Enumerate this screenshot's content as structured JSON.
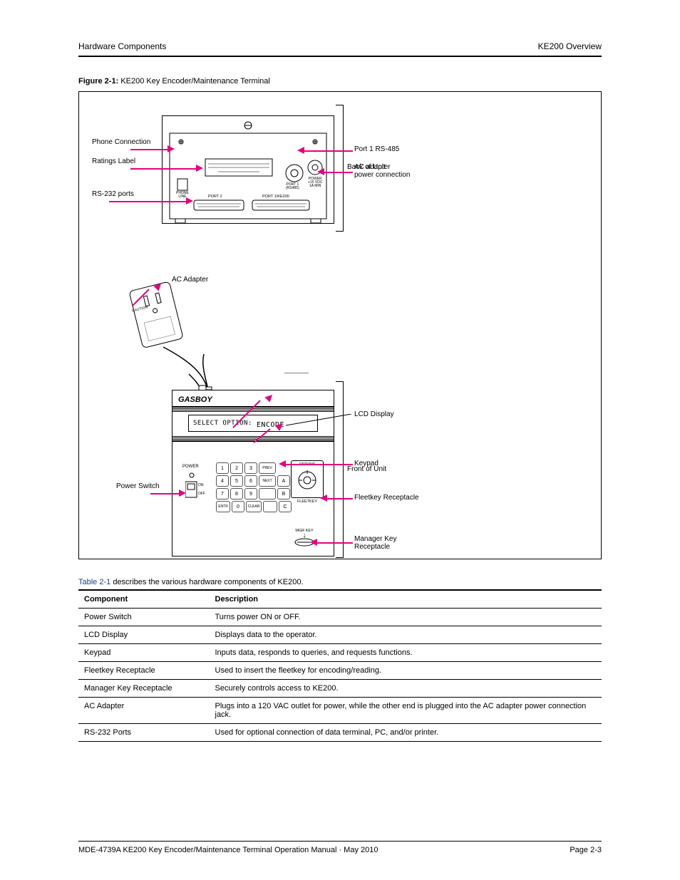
{
  "header": {
    "left": "Hardware Components",
    "right": "KE200 Overview"
  },
  "figure": {
    "caption_prefix": "Figure 2-1:",
    "caption_text": " KE200 Key Encoder/Maintenance Terminal",
    "annotations": {
      "phone_conn": {
        "text": "Phone Connection"
      },
      "ratings": {
        "text": "Ratings Label"
      },
      "port2": {
        "text": "RS-232 ports"
      },
      "ac_adapter": {
        "text": "AC Adapter"
      },
      "back_bracket": {
        "text": "Back of Unit"
      },
      "port1": {
        "text": "Port 1 RS-485"
      },
      "front_bracket": {
        "text": "Front of Unit"
      },
      "power_conn": {
        "text": "AC adapter\npower connection"
      },
      "display": {
        "text": "LCD Display"
      },
      "keypad": {
        "text": "Keypad"
      },
      "fleetkey": {
        "text": "Fleetkey Receptacle"
      },
      "mgrkey": {
        "text": "Manager Key\nReceptacle"
      },
      "power_sw": {
        "text": "Power Switch"
      },
      "lcd_select": "SELECT OPTION:",
      "lcd_encode": "ENCODE",
      "device_brand": "GASBOY",
      "kpd": {
        "r0": [
          "1",
          "2",
          "3",
          ""
        ],
        "r1": [
          "4",
          "5",
          "6",
          "",
          "A"
        ],
        "r2": [
          "7",
          "8",
          "9",
          "",
          "B"
        ],
        "r3": [
          "",
          "0",
          "",
          "",
          "C"
        ],
        "prev": "PREV",
        "next": "NEXT",
        "entr": "ENTR",
        "clr": "CLEAR"
      },
      "back_labels": {
        "phone": "PHONE\nLINE",
        "port2": "PORT 2",
        "p1k": "PORT 1/KE200",
        "port1": "PORT 1\n(RS485)",
        "pwr": "POWER\n+15 VDC\n1A MIN"
      },
      "front_labels": {
        "power": "POWER",
        "on": "ON",
        "off": "OFF",
        "options": "OPTIONS",
        "fleetkey": "FLEETKEY",
        "mgr": "MGR KEY",
        "arrow": "↓"
      },
      "adapter_caution": "CAUTION"
    },
    "colors": {
      "arrow": "#E6007E",
      "line": "#000000",
      "bg": "#ffffff"
    }
  },
  "table": {
    "caption_prefix": "Table 2-1 ",
    "caption_text": "describes the various hardware components of KE200.",
    "col1": "Component",
    "col2": "Description",
    "rows": [
      {
        "c": "Power Switch",
        "d": "Turns power ON or OFF."
      },
      {
        "c": "LCD Display",
        "d": "Displays data to the operator."
      },
      {
        "c": "Keypad",
        "d": "Inputs data, responds to queries, and requests functions."
      },
      {
        "c": "Fleetkey Receptacle",
        "d": "Used to insert the fleetkey for encoding/reading."
      },
      {
        "c": "Manager Key Receptacle",
        "d": "Securely controls access to KE200."
      },
      {
        "c": "AC Adapter",
        "d": "Plugs into a 120 VAC outlet for power, while the other end is plugged into the AC adapter power connection jack."
      },
      {
        "c": "RS-232 Ports",
        "d": "Used for optional connection of data terminal, PC, and/or printer."
      }
    ]
  },
  "footer": {
    "left": "MDE-4739A KE200 Key Encoder/Maintenance Terminal Operation Manual · May 2010",
    "right": "Page 2-3"
  }
}
